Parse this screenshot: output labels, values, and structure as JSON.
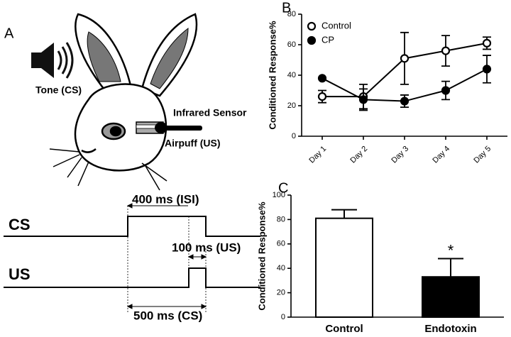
{
  "diagram": {
    "panel_label": "A",
    "tone": "Tone (CS)",
    "sensor": "Infrared Sensor",
    "airpuff": "Airpuff (US)",
    "cs": "CS",
    "us": "US",
    "isi": "400 ms (ISI)",
    "us_duration": "100 ms (US)",
    "cs_duration": "500 ms (CS)"
  },
  "chart_data": [
    {
      "type": "line",
      "panel_label": "B",
      "ylabel": "Conditioned Response%",
      "categories": [
        "Day 1",
        "Day 2",
        "Day 3",
        "Day 4",
        "Day 5"
      ],
      "series": [
        {
          "name": "Control",
          "color": "#000000",
          "marker": "open",
          "values": [
            26,
            26,
            51,
            56,
            61
          ],
          "errors": [
            4,
            8,
            17,
            10,
            4
          ]
        },
        {
          "name": "CP",
          "color": "#000000",
          "marker": "filled",
          "values": [
            38,
            24,
            23,
            30,
            44
          ],
          "errors": [
            0,
            7,
            4,
            6,
            9
          ]
        }
      ],
      "ylim": [
        0,
        80
      ],
      "yticks": [
        0,
        20,
        40,
        60,
        80
      ],
      "grid": false,
      "legend": "top-left"
    },
    {
      "type": "bar",
      "panel_label": "C",
      "ylabel": "Conditioned Response%",
      "categories": [
        "Control",
        "Endotoxin"
      ],
      "values": [
        81,
        33
      ],
      "errors": [
        7,
        15
      ],
      "colors": [
        "#ffffff",
        "#000000"
      ],
      "annotation": "*",
      "ylim": [
        0,
        100
      ],
      "yticks": [
        0,
        20,
        40,
        60,
        80,
        100
      ],
      "grid": false
    }
  ]
}
